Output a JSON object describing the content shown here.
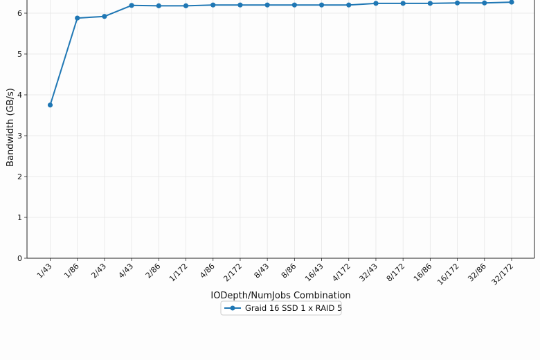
{
  "chart_data": {
    "type": "line",
    "title": "",
    "xlabel": "IODepth/NumJobs Combination",
    "ylabel": "Bandwidth (GB/s)",
    "categories": [
      "1/43",
      "1/86",
      "2/43",
      "4/43",
      "2/86",
      "1/172",
      "4/86",
      "2/172",
      "8/43",
      "8/86",
      "16/43",
      "4/172",
      "32/43",
      "8/172",
      "16/86",
      "16/172",
      "32/86",
      "32/172"
    ],
    "ylim": [
      0,
      6.3
    ],
    "yticks": [
      "0",
      "1",
      "2",
      "3",
      "4",
      "5",
      "6"
    ],
    "grid": true,
    "legend_position": "bottom-center",
    "series": [
      {
        "name": "Graid 16 SSD 1 x RAID 5",
        "color": "#1f77b4",
        "marker": "circle",
        "values": [
          3.75,
          5.88,
          5.92,
          6.19,
          6.18,
          6.18,
          6.2,
          6.2,
          6.2,
          6.2,
          6.2,
          6.2,
          6.24,
          6.24,
          6.24,
          6.25,
          6.25,
          6.27
        ]
      }
    ]
  }
}
